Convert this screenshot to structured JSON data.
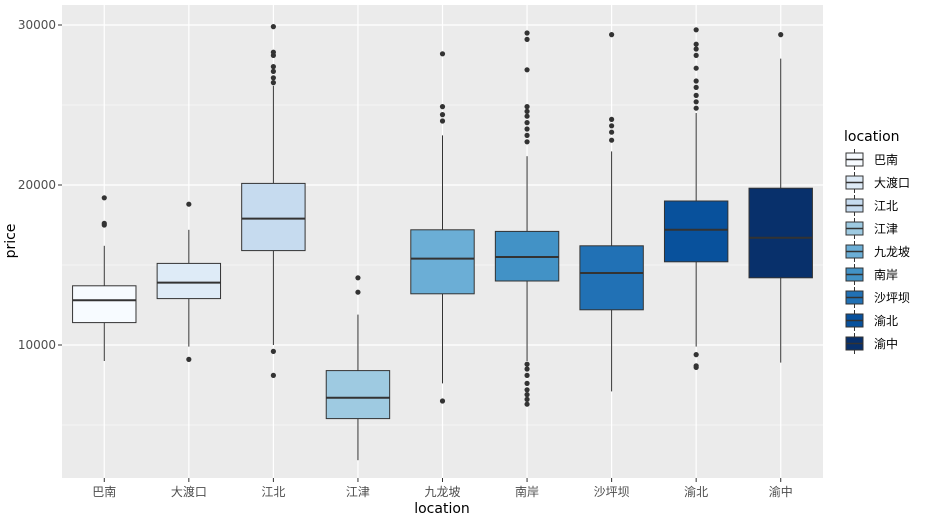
{
  "chart_data": {
    "type": "boxplot",
    "title": "",
    "xlabel": "location",
    "ylabel": "price",
    "ylim": [
      2000,
      31000
    ],
    "y_ticks": [
      10000,
      20000,
      30000
    ],
    "grid": true,
    "legend": {
      "title": "location",
      "placement": "right"
    },
    "categories": [
      "巴南",
      "大渡口",
      "江北",
      "江津",
      "九龙坡",
      "南岸",
      "沙坪坝",
      "渝北",
      "渝中"
    ],
    "colors": [
      "#f7fbff",
      "#deebf7",
      "#c6dbef",
      "#9ecae1",
      "#6baed6",
      "#4292c6",
      "#2171b5",
      "#08519c",
      "#08306b"
    ],
    "boxes": [
      {
        "category": "巴南",
        "whisker_low": 9000,
        "q1": 11400,
        "median": 12800,
        "q3": 13700,
        "whisker_high": 16200,
        "outliers": [
          17500,
          17600,
          19200
        ]
      },
      {
        "category": "大渡口",
        "whisker_low": 9900,
        "q1": 12900,
        "median": 13900,
        "q3": 15100,
        "whisker_high": 17200,
        "outliers": [
          9100,
          18800
        ]
      },
      {
        "category": "江北",
        "whisker_low": 10000,
        "q1": 15900,
        "median": 17900,
        "q3": 20100,
        "whisker_high": 26200,
        "outliers": [
          8100,
          9600,
          26400,
          26700,
          27100,
          27400,
          28100,
          28300,
          29900
        ]
      },
      {
        "category": "江津",
        "whisker_low": 2800,
        "q1": 5400,
        "median": 6700,
        "q3": 8400,
        "whisker_high": 11900,
        "outliers": [
          13300,
          14200
        ]
      },
      {
        "category": "九龙坡",
        "whisker_low": 7600,
        "q1": 13200,
        "median": 15400,
        "q3": 17200,
        "whisker_high": 23100,
        "outliers": [
          6500,
          24000,
          24400,
          24900,
          28200
        ]
      },
      {
        "category": "南岸",
        "whisker_low": 9000,
        "q1": 14000,
        "median": 15500,
        "q3": 17100,
        "whisker_high": 21800,
        "outliers": [
          6300,
          6600,
          6900,
          7200,
          7600,
          8100,
          8500,
          8800,
          22700,
          23100,
          23500,
          23900,
          24300,
          24600,
          24900,
          27200,
          29100,
          29500
        ]
      },
      {
        "category": "沙坪坝",
        "whisker_low": 7100,
        "q1": 12200,
        "median": 14500,
        "q3": 16200,
        "whisker_high": 22100,
        "outliers": [
          22800,
          23300,
          23700,
          24100,
          29400
        ]
      },
      {
        "category": "渝北",
        "whisker_low": 9900,
        "q1": 15200,
        "median": 17200,
        "q3": 19000,
        "whisker_high": 24500,
        "outliers": [
          8600,
          8700,
          9400,
          24800,
          25200,
          25600,
          26100,
          26500,
          27300,
          28100,
          28500,
          28800,
          29700
        ]
      },
      {
        "category": "渝中",
        "whisker_low": 8900,
        "q1": 14200,
        "median": 16700,
        "q3": 19800,
        "whisker_high": 27900,
        "outliers": [
          29400
        ]
      }
    ]
  }
}
